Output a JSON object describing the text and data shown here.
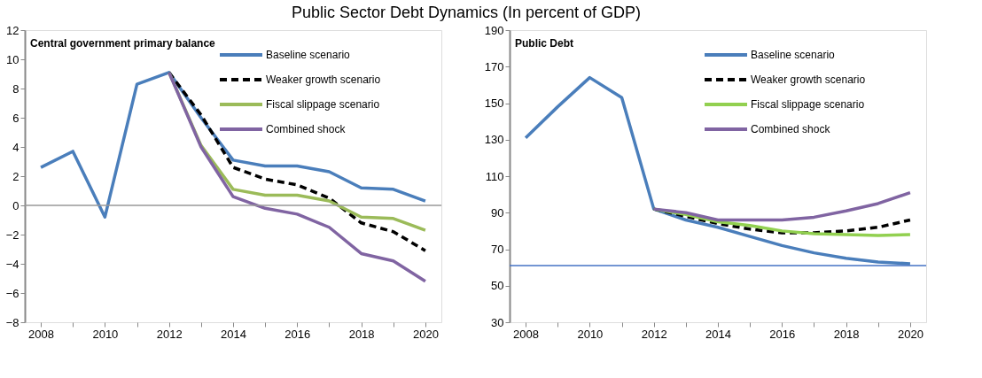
{
  "chart_data": [
    {
      "type": "line",
      "title": "Public Sector Debt Dynamics (In percent of GDP)",
      "subtitle": "Central government primary balance",
      "categories": [
        "2008",
        null,
        "2010",
        null,
        "2012",
        null,
        "2014",
        null,
        "2016",
        null,
        "2018",
        null,
        "2020"
      ],
      "series": [
        {
          "name": "Baseline scenario",
          "color": "#4a7ebb",
          "line_style": "solid",
          "values": [
            2.6,
            3.7,
            -0.8,
            8.3,
            9.1,
            6.0,
            3.1,
            2.7,
            2.7,
            2.3,
            1.2,
            1.1,
            0.3
          ]
        },
        {
          "name": "Weaker growth scenario",
          "color": "#000000",
          "line_style": "dashed",
          "values": [
            null,
            null,
            null,
            null,
            9.1,
            6.2,
            2.6,
            1.8,
            1.4,
            0.5,
            -1.2,
            -1.8,
            -3.1
          ]
        },
        {
          "name": "Fiscal slippage scenario",
          "color": "#9bbb59",
          "line_style": "solid",
          "values": [
            null,
            null,
            null,
            null,
            9.1,
            4.1,
            1.1,
            0.7,
            0.7,
            0.3,
            -0.8,
            -0.9,
            -1.7
          ]
        },
        {
          "name": "Combined  shock",
          "color": "#8064a2",
          "line_style": "solid",
          "values": [
            null,
            null,
            null,
            null,
            9.1,
            4.0,
            0.6,
            -0.2,
            -0.6,
            -1.5,
            -3.3,
            -3.8,
            -5.2
          ]
        }
      ],
      "ylim": [
        -8,
        12
      ],
      "yticks": [
        -8,
        -6,
        -4,
        -2,
        0,
        2,
        4,
        6,
        8,
        10,
        12
      ],
      "ref_lines": [
        {
          "axis": "y",
          "value": 0,
          "color": "#999999"
        }
      ],
      "grid": false,
      "legend": "top right",
      "marker": "none"
    },
    {
      "type": "line",
      "subtitle": "Public Debt",
      "categories": [
        "2008",
        null,
        "2010",
        null,
        "2012",
        null,
        "2014",
        null,
        "2016",
        null,
        "2018",
        null,
        "2020"
      ],
      "series": [
        {
          "name": "Baseline scenario",
          "color": "#4a7ebb",
          "line_style": "solid",
          "values": [
            131,
            148,
            164,
            153,
            92,
            86,
            82,
            77,
            72,
            68,
            65,
            63,
            62
          ]
        },
        {
          "name": "Weaker growth scenario",
          "color": "#000000",
          "line_style": "dashed",
          "values": [
            null,
            null,
            null,
            null,
            92,
            88,
            84,
            81,
            79,
            79,
            80,
            82,
            86
          ]
        },
        {
          "name": "Fiscal slippage scenario",
          "color": "#92d050",
          "line_style": "solid",
          "values": [
            null,
            null,
            null,
            null,
            92,
            89,
            85,
            83,
            80,
            78.5,
            78,
            77.5,
            78
          ]
        },
        {
          "name": "Combined shock",
          "color": "#8064a2",
          "line_style": "solid",
          "values": [
            null,
            null,
            null,
            null,
            92,
            90,
            86,
            86,
            86,
            87.5,
            91,
            95,
            101
          ]
        }
      ],
      "ylim": [
        30,
        190
      ],
      "yticks": [
        30,
        50,
        70,
        90,
        110,
        130,
        150,
        170,
        190
      ],
      "ref_lines": [
        {
          "axis": "y",
          "value": 61,
          "color": "#4472c4"
        }
      ],
      "grid": false,
      "legend": "top right",
      "marker": "none"
    }
  ]
}
